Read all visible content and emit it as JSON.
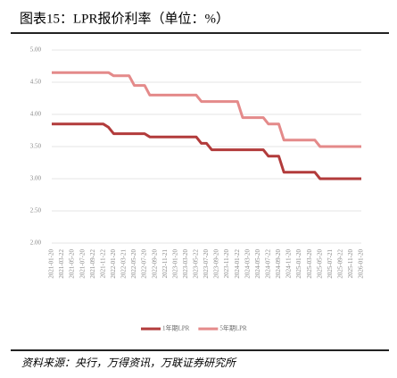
{
  "chart_data": {
    "type": "line",
    "title": "图表15：LPR报价利率（单位：%）",
    "source": "资料来源：央行，万得资讯，万联证券研究所",
    "categories": [
      "2021-01-20",
      null,
      "2021-03-22",
      null,
      "2021-05-20",
      null,
      "2021-07-20",
      null,
      "2021-09-22",
      null,
      "2021-11-22",
      null,
      "2022-01-20",
      null,
      "2022-03-21",
      null,
      "2022-05-20",
      null,
      "2022-07-20",
      null,
      "2022-09-20",
      null,
      "2022-11-21",
      null,
      "2023-01-20",
      null,
      "2023-03-20",
      null,
      "2023-05-22",
      null,
      "2023-07-20",
      null,
      "2023-09-20",
      null,
      "2023-11-20",
      null,
      "2024-01-22",
      null,
      "2024-03-20",
      null,
      "2024-05-20",
      null,
      "2024-07-22",
      null,
      "2024-09-20",
      null,
      "2024-11-20",
      null,
      "2025-01-20",
      null,
      "2025-03-20",
      null,
      "2025-05-20",
      null,
      "2025-07-21",
      null,
      "2025-09-22",
      null,
      "2025-11-20",
      null,
      "2026-01-20"
    ],
    "series": [
      {
        "name": "1年期LPR",
        "color": "#b23b3b",
        "values": [
          3.85,
          3.85,
          3.85,
          3.85,
          3.85,
          3.85,
          3.85,
          3.85,
          3.85,
          3.85,
          3.85,
          3.8,
          3.7,
          3.7,
          3.7,
          3.7,
          3.7,
          3.7,
          3.7,
          3.65,
          3.65,
          3.65,
          3.65,
          3.65,
          3.65,
          3.65,
          3.65,
          3.65,
          3.65,
          3.55,
          3.55,
          3.45,
          3.45,
          3.45,
          3.45,
          3.45,
          3.45,
          3.45,
          3.45,
          3.45,
          3.45,
          3.45,
          3.35,
          3.35,
          3.35,
          3.1,
          3.1,
          3.1,
          3.1,
          3.1,
          3.1,
          3.1,
          3.0,
          3.0,
          3.0,
          3.0,
          3.0,
          3.0,
          3.0,
          3.0,
          3.0
        ]
      },
      {
        "name": "5年期LPR",
        "color": "#e48a8a",
        "values": [
          4.65,
          4.65,
          4.65,
          4.65,
          4.65,
          4.65,
          4.65,
          4.65,
          4.65,
          4.65,
          4.65,
          4.65,
          4.6,
          4.6,
          4.6,
          4.6,
          4.45,
          4.45,
          4.45,
          4.3,
          4.3,
          4.3,
          4.3,
          4.3,
          4.3,
          4.3,
          4.3,
          4.3,
          4.3,
          4.2,
          4.2,
          4.2,
          4.2,
          4.2,
          4.2,
          4.2,
          4.2,
          3.95,
          3.95,
          3.95,
          3.95,
          3.95,
          3.85,
          3.85,
          3.85,
          3.6,
          3.6,
          3.6,
          3.6,
          3.6,
          3.6,
          3.6,
          3.5,
          3.5,
          3.5,
          3.5,
          3.5,
          3.5,
          3.5,
          3.5,
          3.5
        ]
      }
    ],
    "ylim": [
      2,
      5
    ],
    "yticks": [
      {
        "value": 2,
        "label": "2.00"
      },
      {
        "value": 2.5,
        "label": "2.50"
      },
      {
        "value": 3,
        "label": "3.00"
      },
      {
        "value": 3.5,
        "label": "3.50"
      },
      {
        "value": 4,
        "label": "4.00"
      },
      {
        "value": 4.5,
        "label": "4.50"
      },
      {
        "value": 5,
        "label": "5.00"
      }
    ],
    "grid": true
  }
}
